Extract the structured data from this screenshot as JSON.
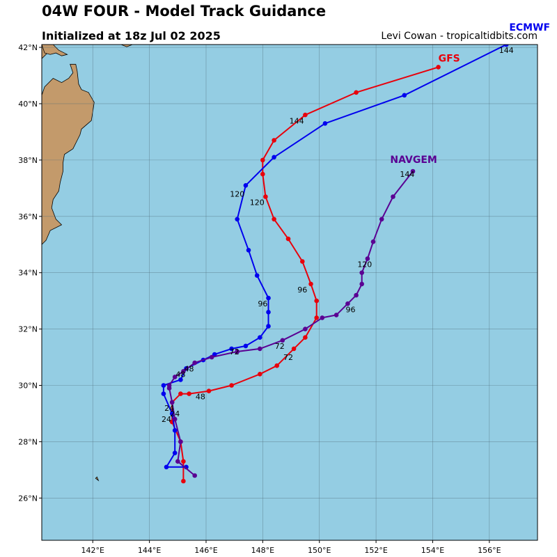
{
  "header": {
    "title": "04W FOUR - Model Track Guidance",
    "subtitle": "Initialized at 18z Jul 02 2025",
    "credit": "Levi Cowan - tropicaltidbits.com"
  },
  "map": {
    "extent": {
      "lon": [
        140.2,
        157.7
      ],
      "lat": [
        24.5,
        42.1
      ]
    },
    "lat_ticks": [
      {
        "value": 26,
        "label": "26°N"
      },
      {
        "value": 28,
        "label": "28°N"
      },
      {
        "value": 30,
        "label": "30°N"
      },
      {
        "value": 32,
        "label": "32°N"
      },
      {
        "value": 34,
        "label": "34°N"
      },
      {
        "value": 36,
        "label": "36°N"
      },
      {
        "value": 38,
        "label": "38°N"
      },
      {
        "value": 40,
        "label": "40°N"
      },
      {
        "value": 42,
        "label": "42°N"
      }
    ],
    "lon_ticks": [
      {
        "value": 142,
        "label": "142°E"
      },
      {
        "value": 144,
        "label": "144°E"
      },
      {
        "value": 146,
        "label": "146°E"
      },
      {
        "value": 148,
        "label": "148°E"
      },
      {
        "value": 150,
        "label": "150°E"
      },
      {
        "value": 152,
        "label": "152°E"
      },
      {
        "value": 154,
        "label": "154°E"
      },
      {
        "value": 156,
        "label": "156°E"
      }
    ],
    "colors": {
      "ocean": "#94cde3",
      "land": "#c39a6b",
      "grid": "#4f6b78",
      "frame": "#000000"
    },
    "land": [
      {
        "name": "honshu-coast",
        "coords": [
          [
            140.2,
            41.6
          ],
          [
            140.5,
            41.9
          ],
          [
            140.6,
            42.1
          ],
          [
            140.2,
            42.1
          ]
        ]
      },
      {
        "name": "honshu-main",
        "coords": [
          [
            140.2,
            40.3
          ],
          [
            140.3,
            40.6
          ],
          [
            140.6,
            40.9
          ],
          [
            140.9,
            40.75
          ],
          [
            141.15,
            40.9
          ],
          [
            141.3,
            41.1
          ],
          [
            141.2,
            41.4
          ],
          [
            141.4,
            41.4
          ],
          [
            141.45,
            41.15
          ],
          [
            141.5,
            40.7
          ],
          [
            141.6,
            40.5
          ],
          [
            141.85,
            40.4
          ],
          [
            142.05,
            40.05
          ],
          [
            142.0,
            39.7
          ],
          [
            141.95,
            39.4
          ],
          [
            141.6,
            39.1
          ],
          [
            141.55,
            38.9
          ],
          [
            141.45,
            38.7
          ],
          [
            141.3,
            38.4
          ],
          [
            141.0,
            38.2
          ],
          [
            140.95,
            37.9
          ],
          [
            140.95,
            37.6
          ],
          [
            140.85,
            37.2
          ],
          [
            140.8,
            36.9
          ],
          [
            140.6,
            36.6
          ],
          [
            140.55,
            36.3
          ],
          [
            140.7,
            35.9
          ],
          [
            140.9,
            35.7
          ],
          [
            140.5,
            35.5
          ],
          [
            140.35,
            35.15
          ],
          [
            140.2,
            35.0
          ]
        ]
      },
      {
        "name": "hokkaido-tip",
        "coords": [
          [
            140.2,
            42.1
          ],
          [
            140.3,
            41.8
          ],
          [
            140.5,
            41.75
          ],
          [
            140.7,
            41.8
          ],
          [
            140.9,
            41.7
          ],
          [
            141.1,
            41.75
          ],
          [
            140.8,
            41.9
          ],
          [
            140.6,
            42.1
          ]
        ]
      },
      {
        "name": "hokkaido-cape",
        "coords": [
          [
            143.0,
            42.1
          ],
          [
            143.2,
            42.02
          ],
          [
            143.4,
            42.1
          ]
        ]
      },
      {
        "name": "small-isle",
        "coords": [
          [
            142.1,
            26.7
          ],
          [
            142.2,
            26.62
          ],
          [
            142.15,
            26.75
          ]
        ]
      }
    ],
    "models": [
      {
        "name": "GFS",
        "color": "#e8000b",
        "label": {
          "text": "GFS",
          "lon": 154.2,
          "lat": 41.5
        },
        "points": [
          [
            145.2,
            26.6
          ],
          [
            145.2,
            27.3
          ],
          [
            145.1,
            28.0
          ],
          [
            144.8,
            28.7
          ],
          [
            144.8,
            29.4
          ],
          [
            145.1,
            29.7
          ],
          [
            145.4,
            29.7
          ],
          [
            146.1,
            29.8
          ],
          [
            146.9,
            30.0
          ],
          [
            147.9,
            30.4
          ],
          [
            148.5,
            30.7
          ],
          [
            149.1,
            31.3
          ],
          [
            149.5,
            31.7
          ],
          [
            149.9,
            32.4
          ],
          [
            149.9,
            33.0
          ],
          [
            149.7,
            33.6
          ],
          [
            149.4,
            34.4
          ],
          [
            148.9,
            35.2
          ],
          [
            148.4,
            35.9
          ],
          [
            148.1,
            36.7
          ],
          [
            148.0,
            37.5
          ],
          [
            148.0,
            38.0
          ],
          [
            148.4,
            38.7
          ],
          [
            149.5,
            39.6
          ],
          [
            151.3,
            40.4
          ],
          [
            154.2,
            41.3
          ]
        ],
        "hour_labels": [
          {
            "text": "24",
            "lon": 144.6,
            "lat": 28.7
          },
          {
            "text": "48",
            "lon": 145.8,
            "lat": 29.5
          },
          {
            "text": "72",
            "lon": 148.9,
            "lat": 30.9
          },
          {
            "text": "96",
            "lon": 149.4,
            "lat": 33.3
          },
          {
            "text": "120",
            "lon": 147.8,
            "lat": 36.4
          },
          {
            "text": "144",
            "lon": 149.2,
            "lat": 39.3
          }
        ]
      },
      {
        "name": "ECMWF",
        "color": "#0000ee",
        "label": {
          "text": "ECMWF",
          "lon": 156.7,
          "lat": 42.6
        },
        "points": [
          [
            145.3,
            27.1
          ],
          [
            144.6,
            27.1
          ],
          [
            144.9,
            27.6
          ],
          [
            144.9,
            28.4
          ],
          [
            144.8,
            29.0
          ],
          [
            144.5,
            29.7
          ],
          [
            144.5,
            30.0
          ],
          [
            145.1,
            30.2
          ],
          [
            145.3,
            30.6
          ],
          [
            145.9,
            30.9
          ],
          [
            146.3,
            31.1
          ],
          [
            146.9,
            31.3
          ],
          [
            147.4,
            31.4
          ],
          [
            147.9,
            31.7
          ],
          [
            148.2,
            32.1
          ],
          [
            148.2,
            32.6
          ],
          [
            148.2,
            33.1
          ],
          [
            147.8,
            33.9
          ],
          [
            147.5,
            34.8
          ],
          [
            147.1,
            35.9
          ],
          [
            147.4,
            37.1
          ],
          [
            148.4,
            38.1
          ],
          [
            150.2,
            39.3
          ],
          [
            153.0,
            40.3
          ],
          [
            156.6,
            42.1
          ]
        ],
        "hour_labels": [
          {
            "text": "24",
            "lon": 144.7,
            "lat": 29.1
          },
          {
            "text": "48",
            "lon": 145.1,
            "lat": 30.3
          },
          {
            "text": "72",
            "lon": 147.0,
            "lat": 31.1
          },
          {
            "text": "96",
            "lon": 148.0,
            "lat": 32.8
          },
          {
            "text": "120",
            "lon": 147.1,
            "lat": 36.7
          },
          {
            "text": "144",
            "lon": 156.6,
            "lat": 41.8
          }
        ]
      },
      {
        "name": "NAVGEM",
        "color": "#5a0093",
        "label": {
          "text": "NAVGEM",
          "lon": 152.5,
          "lat": 37.9
        },
        "points": [
          [
            145.6,
            26.8
          ],
          [
            145.0,
            27.3
          ],
          [
            145.1,
            28.0
          ],
          [
            144.9,
            28.8
          ],
          [
            144.8,
            29.4
          ],
          [
            144.7,
            29.9
          ],
          [
            144.7,
            30.0
          ],
          [
            144.9,
            30.3
          ],
          [
            145.2,
            30.5
          ],
          [
            145.6,
            30.8
          ],
          [
            146.2,
            31.0
          ],
          [
            147.1,
            31.2
          ],
          [
            147.9,
            31.3
          ],
          [
            148.7,
            31.6
          ],
          [
            149.5,
            32.0
          ],
          [
            150.1,
            32.4
          ],
          [
            150.6,
            32.5
          ],
          [
            151.0,
            32.9
          ],
          [
            151.3,
            33.2
          ],
          [
            151.5,
            33.6
          ],
          [
            151.5,
            34.0
          ],
          [
            151.7,
            34.5
          ],
          [
            151.9,
            35.1
          ],
          [
            152.2,
            35.9
          ],
          [
            152.6,
            36.7
          ],
          [
            153.3,
            37.6
          ]
        ],
        "hour_labels": [
          {
            "text": "24",
            "lon": 144.9,
            "lat": 28.9
          },
          {
            "text": "48",
            "lon": 145.4,
            "lat": 30.5
          },
          {
            "text": "72",
            "lon": 148.6,
            "lat": 31.3
          },
          {
            "text": "96",
            "lon": 151.1,
            "lat": 32.6
          },
          {
            "text": "120",
            "lon": 151.6,
            "lat": 34.2
          },
          {
            "text": "144",
            "lon": 153.1,
            "lat": 37.4
          }
        ]
      }
    ]
  }
}
